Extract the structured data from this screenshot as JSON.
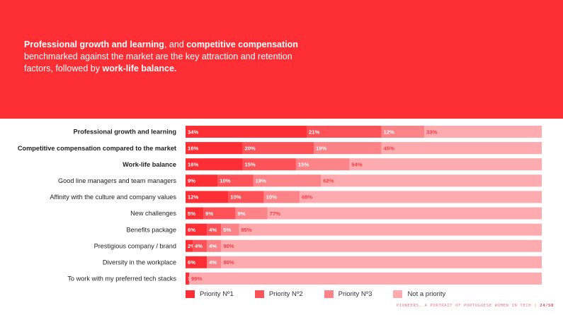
{
  "headline": {
    "p1": "Professional growth and learning",
    "p2": ", and ",
    "p3": "competitive compensation",
    "p4": " benchmarked against the market are the key attraction and retention factors, followed by ",
    "p5": "work-life balance.",
    "p6": ""
  },
  "colors": {
    "banner": "#fe2e35",
    "priority1": "#fe2e35",
    "priority2": "#fd5257",
    "priority3": "#fc8387",
    "not_priority": "#fdabaf",
    "track": "#fde6e8"
  },
  "chart_data": {
    "type": "bar",
    "orientation": "horizontal",
    "stacked": true,
    "xlim": [
      0,
      100
    ],
    "categories": [
      "Professional growth and learning",
      "Competitive compensation compared to the market",
      "Work-life balance",
      "Good line managers and team managers",
      "Affinity with the culture and company values",
      "New challenges",
      "Benefits package",
      "Prestigious company / brand",
      "Diversity in the workplace",
      "To work with my preferred tech stacks"
    ],
    "bold_categories": [
      0,
      1,
      2
    ],
    "series": [
      {
        "name": "Priority Nº1",
        "color": "#fe2e35",
        "text_color": "#ffffff",
        "values": [
          34,
          16,
          16,
          9,
          12,
          5,
          6,
          2,
          6,
          1
        ]
      },
      {
        "name": "Priority Nº2",
        "color": "#fd5257",
        "text_color": "#ffffff",
        "values": [
          21,
          20,
          15,
          10,
          10,
          9,
          4,
          4,
          null,
          null
        ]
      },
      {
        "name": "Priority Nº3",
        "color": "#fc8387",
        "text_color": "#ffffff",
        "values": [
          12,
          19,
          15,
          19,
          10,
          9,
          5,
          4,
          4,
          null
        ]
      },
      {
        "name": "Not a priority",
        "color": "#fdabaf",
        "text_color": "#ff3b42",
        "values": [
          33,
          45,
          54,
          62,
          68,
          77,
          85,
          90,
          90,
          99
        ]
      }
    ],
    "value_suffix": "%"
  },
  "legend": {
    "items": [
      {
        "label": "Priority Nº1",
        "color": "#fe2e35"
      },
      {
        "label": "Priority Nº2",
        "color": "#fd5257"
      },
      {
        "label": "Priority Nº3",
        "color": "#fc8387"
      },
      {
        "label": "Not a priority",
        "color": "#fdabaf"
      }
    ]
  },
  "footer": {
    "text": "PIONEERS, A PORTRAIT OF PORTUGUESE WOMEN IN TECH | ",
    "page": "24/58"
  }
}
